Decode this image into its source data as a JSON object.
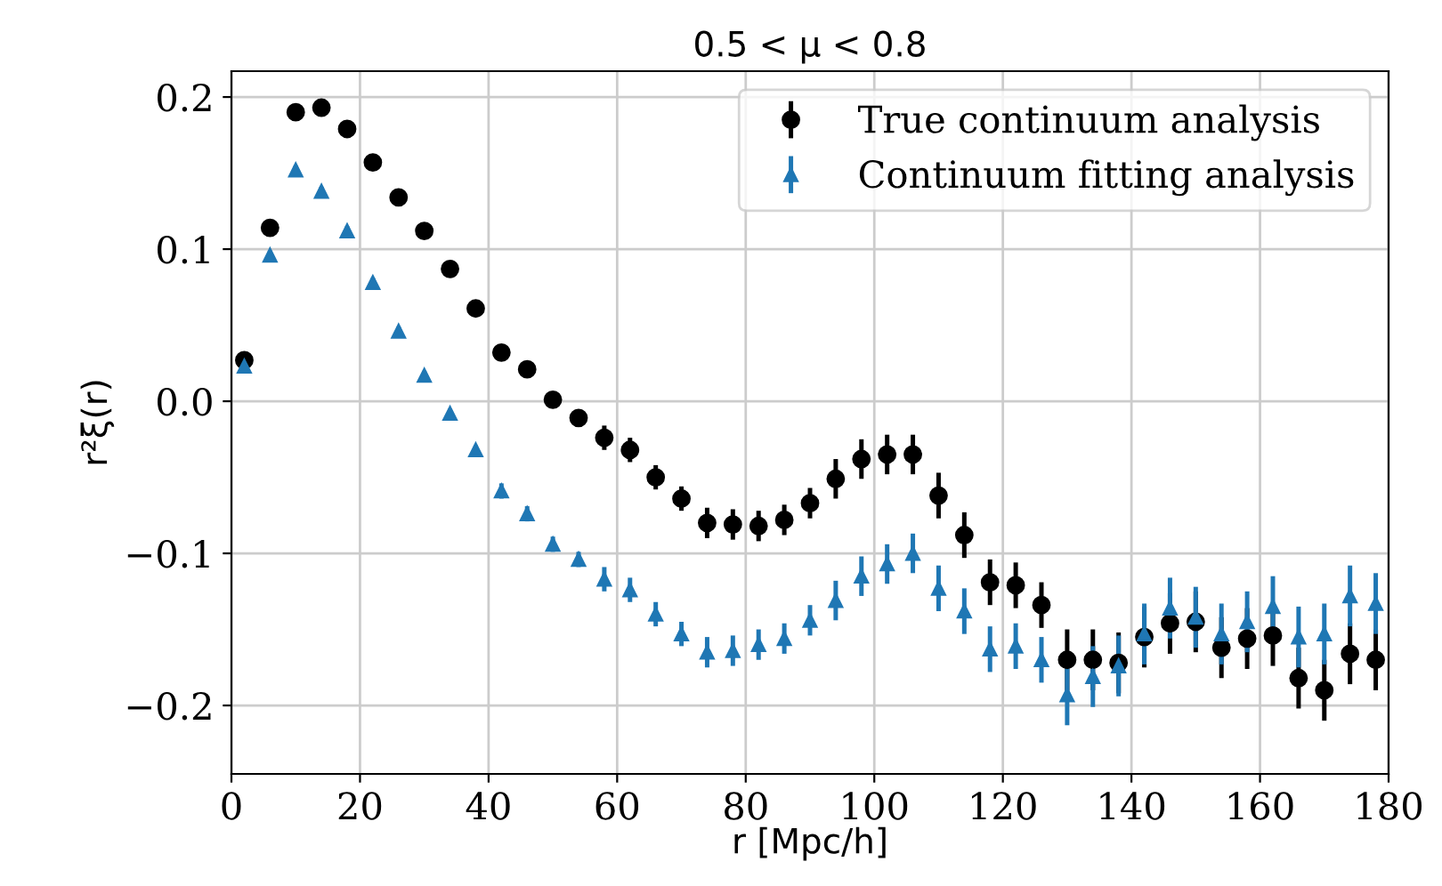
{
  "chart_data": {
    "type": "scatter",
    "title": "0.5 < μ < 0.8",
    "xlabel": "r [Mpc/h]",
    "ylabel": "r²ξ(r)",
    "x": [
      2,
      6,
      10,
      14,
      18,
      22,
      26,
      30,
      34,
      38,
      42,
      46,
      50,
      54,
      58,
      62,
      66,
      70,
      74,
      78,
      82,
      86,
      90,
      94,
      98,
      102,
      106,
      110,
      114,
      118,
      122,
      126,
      130,
      134,
      138,
      142,
      146,
      150,
      154,
      158,
      162,
      166,
      170,
      174,
      178
    ],
    "series": [
      {
        "name": "True continuum analysis",
        "color": "#000000",
        "marker": "circle",
        "values": [
          0.027,
          0.114,
          0.19,
          0.193,
          0.179,
          0.157,
          0.134,
          0.112,
          0.087,
          0.061,
          0.032,
          0.021,
          0.001,
          -0.011,
          -0.024,
          -0.032,
          -0.05,
          -0.064,
          -0.08,
          -0.081,
          -0.082,
          -0.078,
          -0.067,
          -0.051,
          -0.038,
          -0.035,
          -0.035,
          -0.062,
          -0.088,
          -0.119,
          -0.121,
          -0.134,
          -0.17,
          -0.17,
          -0.172,
          -0.155,
          -0.146,
          -0.145,
          -0.162,
          -0.156,
          -0.154,
          -0.182,
          -0.19,
          -0.166,
          -0.17
        ],
        "errors": [
          0.003,
          0.003,
          0.003,
          0.003,
          0.003,
          0.003,
          0.003,
          0.003,
          0.003,
          0.003,
          0.005,
          0.005,
          0.005,
          0.005,
          0.008,
          0.008,
          0.008,
          0.008,
          0.01,
          0.01,
          0.01,
          0.01,
          0.01,
          0.013,
          0.013,
          0.013,
          0.013,
          0.015,
          0.015,
          0.015,
          0.015,
          0.015,
          0.02,
          0.02,
          0.02,
          0.02,
          0.02,
          0.02,
          0.02,
          0.02,
          0.02,
          0.02,
          0.02,
          0.02,
          0.02
        ]
      },
      {
        "name": "Continuum fitting analysis",
        "color": "#1f77b4",
        "marker": "triangle",
        "values": [
          0.023,
          0.096,
          0.152,
          0.138,
          0.112,
          0.078,
          0.046,
          0.017,
          -0.008,
          -0.032,
          -0.059,
          -0.074,
          -0.094,
          -0.104,
          -0.117,
          -0.124,
          -0.14,
          -0.153,
          -0.165,
          -0.164,
          -0.16,
          -0.156,
          -0.144,
          -0.131,
          -0.115,
          -0.107,
          -0.1,
          -0.123,
          -0.138,
          -0.163,
          -0.161,
          -0.17,
          -0.193,
          -0.181,
          -0.174,
          -0.153,
          -0.136,
          -0.142,
          -0.153,
          -0.145,
          -0.135,
          -0.155,
          -0.153,
          -0.128,
          -0.133
        ],
        "errors": [
          0.003,
          0.003,
          0.003,
          0.003,
          0.003,
          0.003,
          0.003,
          0.003,
          0.003,
          0.003,
          0.005,
          0.005,
          0.005,
          0.005,
          0.008,
          0.008,
          0.008,
          0.008,
          0.01,
          0.01,
          0.01,
          0.01,
          0.01,
          0.013,
          0.013,
          0.013,
          0.013,
          0.015,
          0.015,
          0.015,
          0.015,
          0.015,
          0.02,
          0.02,
          0.02,
          0.02,
          0.02,
          0.02,
          0.02,
          0.02,
          0.02,
          0.02,
          0.02,
          0.02,
          0.02
        ]
      }
    ],
    "xlim": [
      0,
      180
    ],
    "xticks": [
      0,
      20,
      40,
      60,
      80,
      100,
      120,
      140,
      160,
      180
    ],
    "ylim": [
      -0.245,
      0.217
    ],
    "yticks": [
      {
        "value": -0.2,
        "label": "−0.2"
      },
      {
        "value": -0.1,
        "label": "−0.1"
      },
      {
        "value": 0,
        "label": "0.0"
      },
      {
        "value": 0.1,
        "label": "0.1"
      },
      {
        "value": 0.2,
        "label": "0.2"
      }
    ],
    "grid": true,
    "legend": "top right"
  }
}
